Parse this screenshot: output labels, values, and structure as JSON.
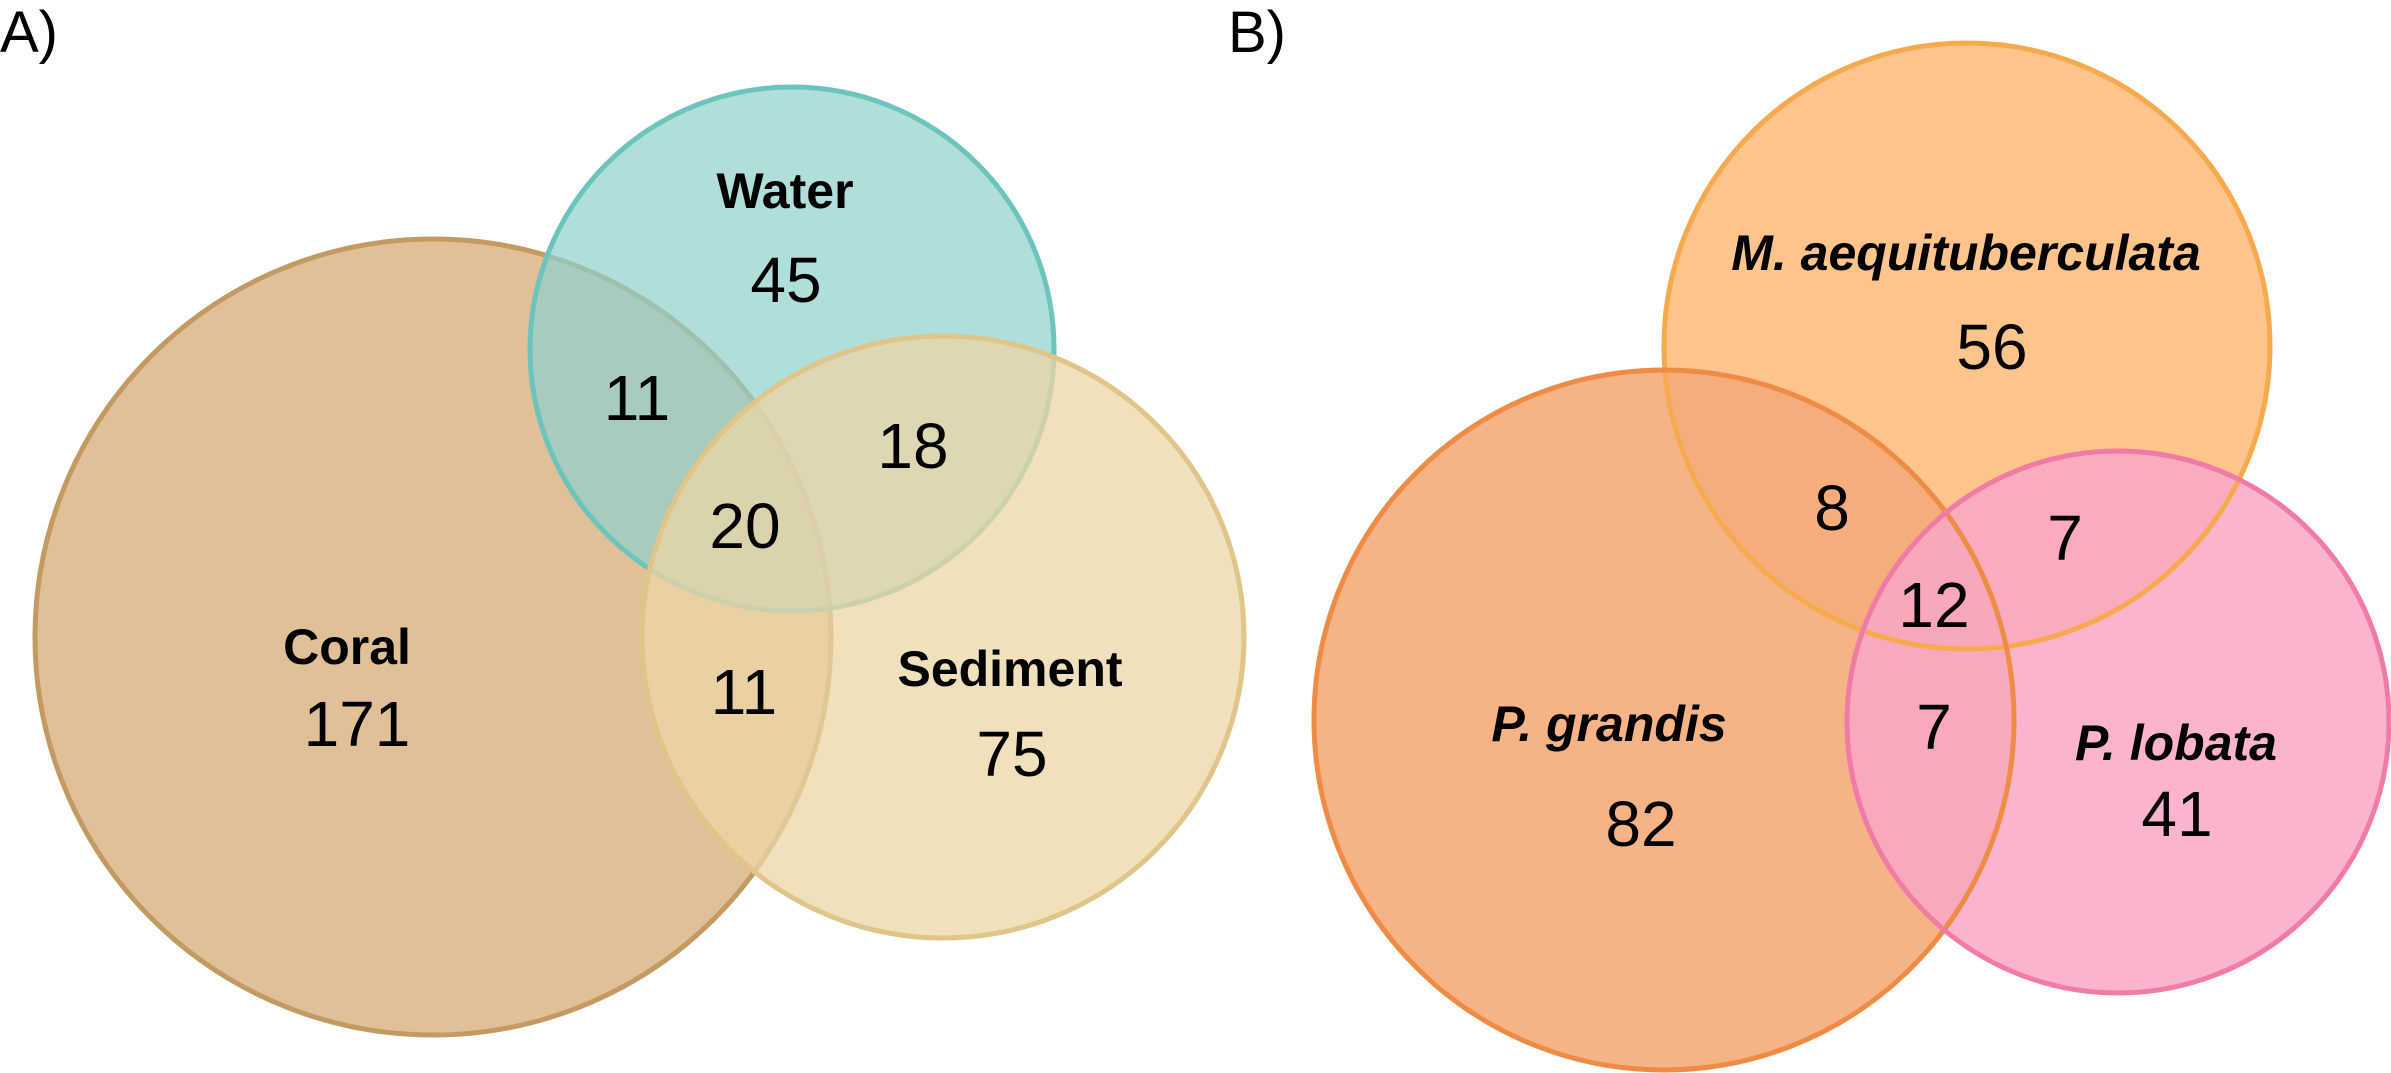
{
  "panels": [
    {
      "letter": "A)",
      "sets": [
        {
          "label": "Coral",
          "fill": "#d9b07e",
          "stroke": "#c49a63",
          "only_count": "171"
        },
        {
          "label": "Water",
          "fill": "#8fd0cc",
          "stroke": "#6cc4bd",
          "only_count": "45"
        },
        {
          "label": "Sediment",
          "fill": "#ecd6a6",
          "stroke": "#e0c588",
          "only_count": "75"
        }
      ],
      "intersections": {
        "coral_water": "11",
        "water_sediment": "18",
        "coral_sediment": "11",
        "all_three": "20"
      }
    },
    {
      "letter": "B)",
      "sets": [
        {
          "label": "M. aequituberculata",
          "fill": "#fdc185",
          "stroke": "#f7a94e",
          "only_count": "56"
        },
        {
          "label": "P. grandis",
          "fill": "#f5ab79",
          "stroke": "#ee8c46",
          "only_count": "82"
        },
        {
          "label": "P. lobata",
          "fill": "#f9a7c5",
          "stroke": "#f07ba7",
          "only_count": "41"
        }
      ],
      "intersections": {
        "maequi_pgrandis": "8",
        "maequi_plobata": "7",
        "pgrandis_plobata": "7",
        "all_three": "12"
      }
    }
  ]
}
